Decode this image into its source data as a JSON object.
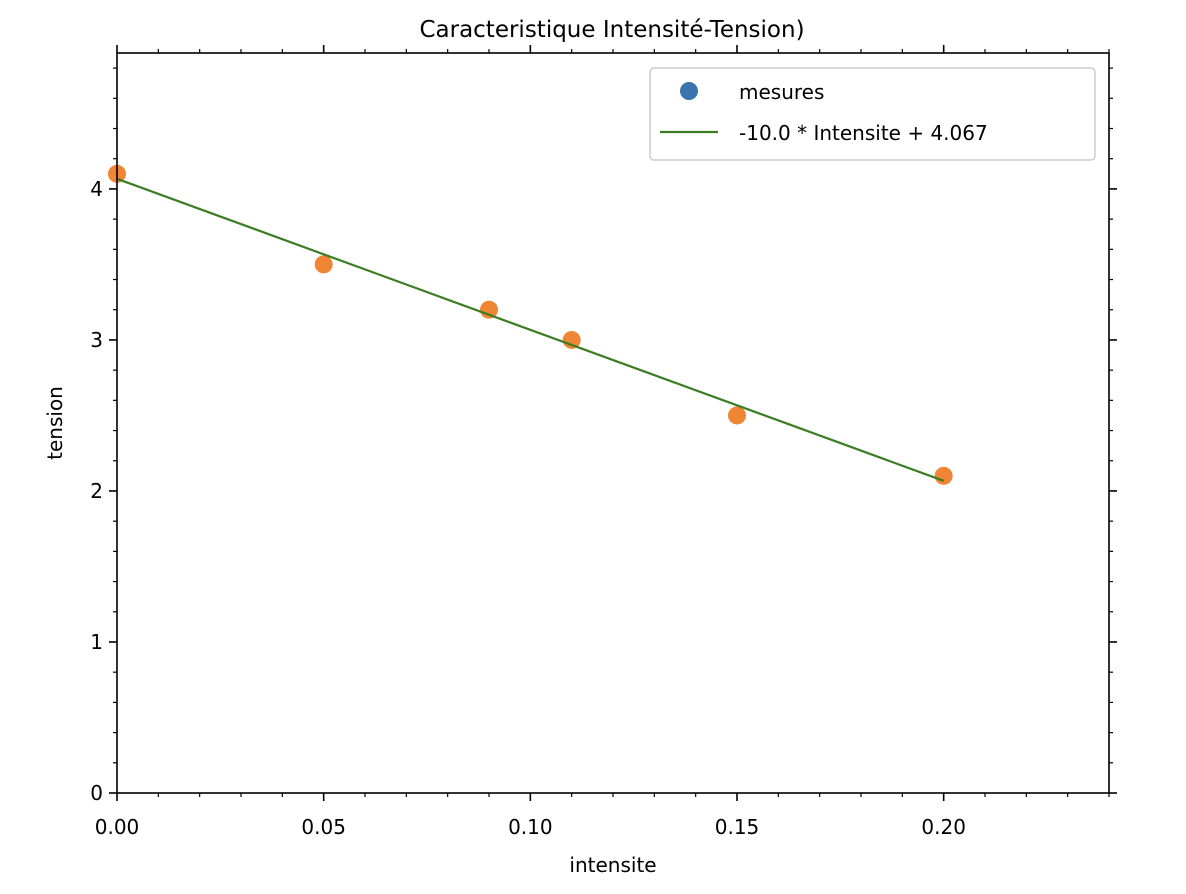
{
  "chart_data": {
    "type": "scatter",
    "title": "Caracteristique Intensité-Tension)",
    "xlabel": "intensite",
    "ylabel": "tension",
    "xlim": [
      0.0,
      0.24
    ],
    "ylim": [
      0,
      4.9
    ],
    "x_ticks": [
      0.0,
      0.05,
      0.1,
      0.15,
      0.2
    ],
    "x_tick_labels": [
      "0.00",
      "0.05",
      "0.10",
      "0.15",
      "0.20"
    ],
    "y_ticks": [
      0,
      1,
      2,
      3,
      4
    ],
    "y_tick_labels": [
      "0",
      "1",
      "2",
      "3",
      "4"
    ],
    "grid": false,
    "legend_position": "top-right",
    "series": [
      {
        "name": "mesures",
        "kind": "scatter",
        "legend_color": "#3a75b0",
        "color": "#f08536",
        "x": [
          0.0,
          0.05,
          0.09,
          0.11,
          0.15,
          0.2
        ],
        "y": [
          4.1,
          3.5,
          3.2,
          3.0,
          2.5,
          2.1
        ]
      },
      {
        "name": "-10.0 * Intensite + 4.067",
        "kind": "line",
        "color": "#3a7d22",
        "x": [
          0.0,
          0.2
        ],
        "y": [
          4.067,
          2.067
        ]
      }
    ]
  }
}
